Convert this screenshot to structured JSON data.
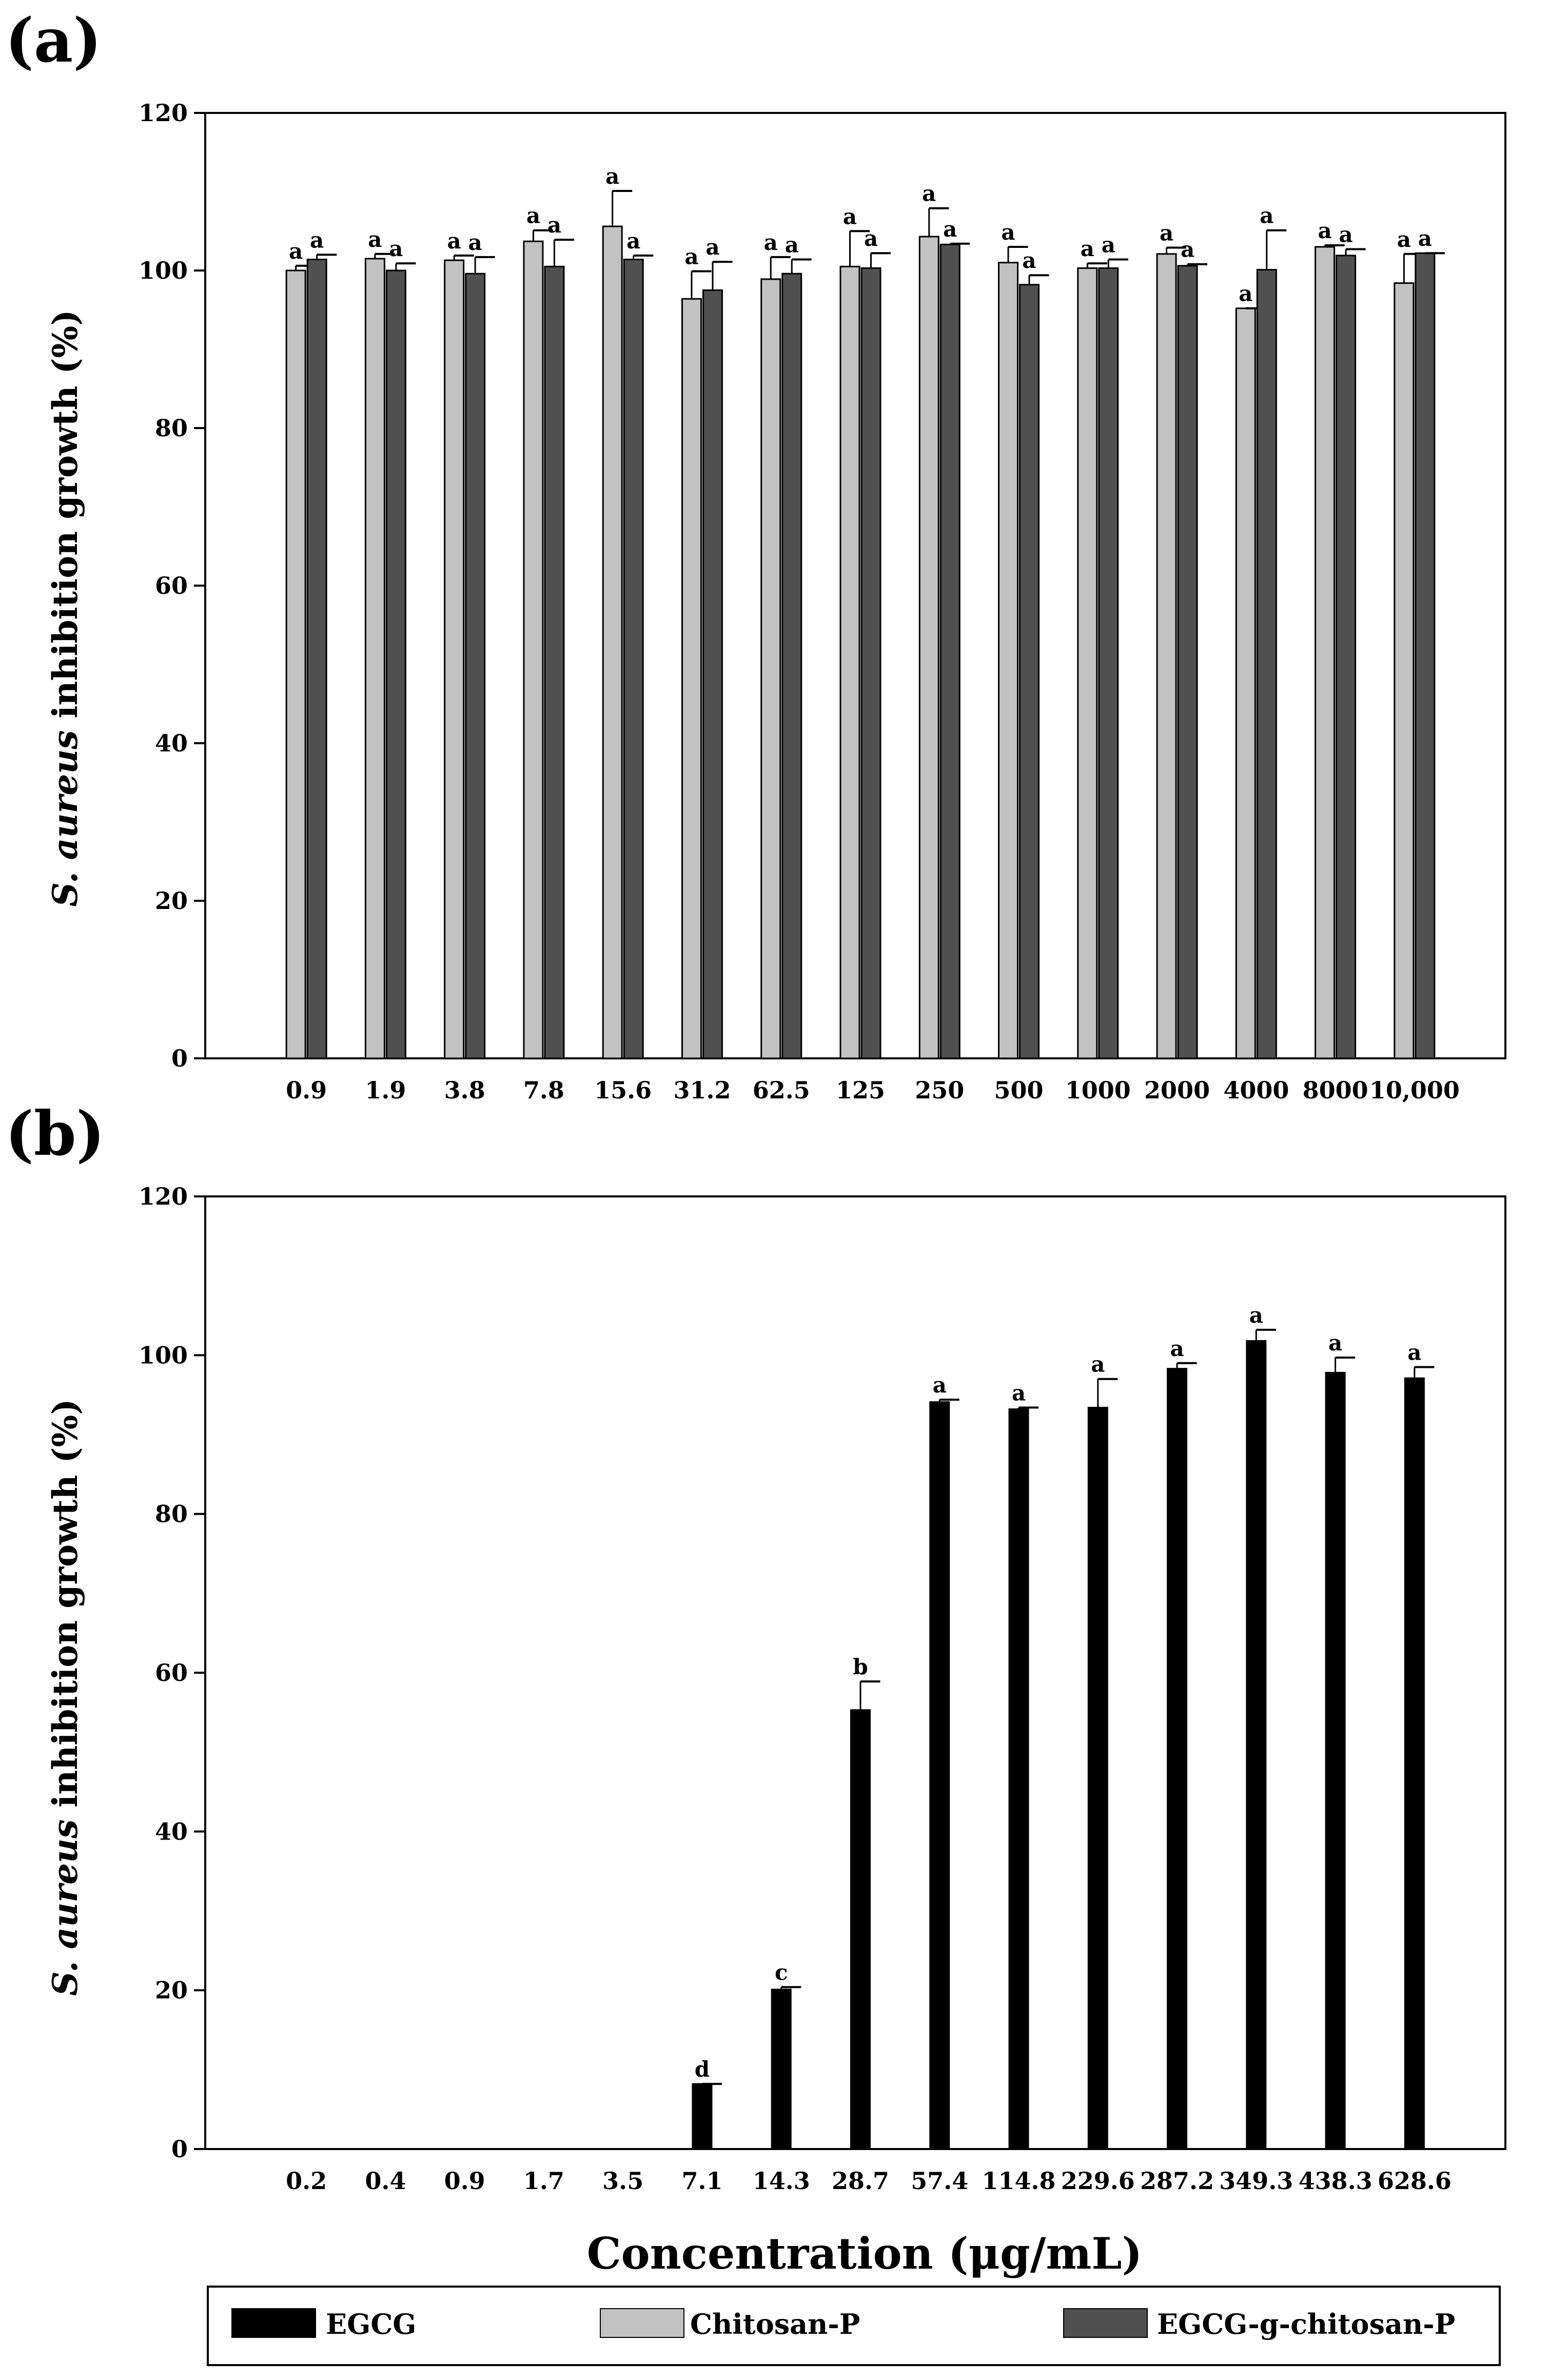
{
  "colors": {
    "EGCG": "#000000",
    "Chitosan-P": "#c2c2c2",
    "EGCG-g-chitosan-P": "#505050"
  },
  "chart_data": [
    {
      "type": "bar",
      "panel": "(a)",
      "ylabel_italic": "S. aureus",
      "ylabel_rest": "inhibition growth (%)",
      "ylim": [
        0,
        120
      ],
      "yticks": [
        "0",
        "20",
        "40",
        "60",
        "80",
        "100",
        "120"
      ],
      "categories": [
        "0.9",
        "1.9",
        "3.8",
        "7.8",
        "15.6",
        "31.2",
        "62.5",
        "125",
        "250",
        "500",
        "1000",
        "2000",
        "4000",
        "8000",
        "10,000"
      ],
      "series": [
        {
          "name": "Chitosan-P",
          "values": [
            100.0,
            101.5,
            101.3,
            103.7,
            105.6,
            96.4,
            98.9,
            100.5,
            104.3,
            101.0,
            100.3,
            102.1,
            95.2,
            103.0,
            98.4
          ],
          "errors": [
            0.6,
            0.6,
            0.6,
            1.4,
            4.5,
            3.5,
            2.8,
            4.5,
            3.6,
            2.0,
            0.6,
            0.8,
            0.0,
            0.2,
            3.7
          ],
          "labels": [
            "a",
            "a",
            "a",
            "a",
            "a",
            "a",
            "a",
            "a",
            "a",
            "a",
            "a",
            "a",
            "a",
            "a",
            "a"
          ]
        },
        {
          "name": "EGCG-g-chitosan-P",
          "values": [
            101.4,
            100.0,
            99.6,
            100.5,
            101.4,
            97.5,
            99.6,
            100.3,
            103.3,
            98.2,
            100.3,
            100.6,
            100.1,
            101.9,
            102.2
          ],
          "errors": [
            0.6,
            0.9,
            2.1,
            3.4,
            0.5,
            3.6,
            1.8,
            1.9,
            0.1,
            1.2,
            1.1,
            0.2,
            5.0,
            0.8,
            0.0
          ],
          "labels": [
            "a",
            "a",
            "a",
            "a",
            "a",
            "a",
            "a",
            "a",
            "a",
            "a",
            "a",
            "a",
            "a",
            "a",
            "a"
          ]
        }
      ]
    },
    {
      "type": "bar",
      "panel": "(b)",
      "ylabel_italic": "S. aureus",
      "ylabel_rest": "inhibition growth (%)",
      "xlabel": "Concentration (μg/mL)",
      "ylim": [
        0,
        120
      ],
      "yticks": [
        "0",
        "20",
        "40",
        "60",
        "80",
        "100",
        "120"
      ],
      "categories": [
        "0.2",
        "0.4",
        "0.9",
        "1.7",
        "3.5",
        "7.1",
        "14.3",
        "28.7",
        "57.4",
        "114.8",
        "229.6",
        "287.2",
        "349.3",
        "438.3",
        "628.6"
      ],
      "series": [
        {
          "name": "EGCG",
          "values": [
            0,
            0,
            0,
            0,
            0,
            8.2,
            20.1,
            55.3,
            94.1,
            93.2,
            93.4,
            98.3,
            101.8,
            97.8,
            97.1
          ],
          "errors": [
            0,
            0,
            0,
            0,
            0,
            0.0,
            0.3,
            3.6,
            0.3,
            0.2,
            3.6,
            0.7,
            1.4,
            1.9,
            1.4
          ],
          "labels": [
            "",
            "",
            "",
            "",
            "",
            "d",
            "c",
            "b",
            "a",
            "a",
            "a",
            "a",
            "a",
            "a",
            "a"
          ]
        }
      ]
    }
  ],
  "legend": [
    "EGCG",
    "Chitosan-P",
    "EGCG-g-chitosan-P"
  ]
}
